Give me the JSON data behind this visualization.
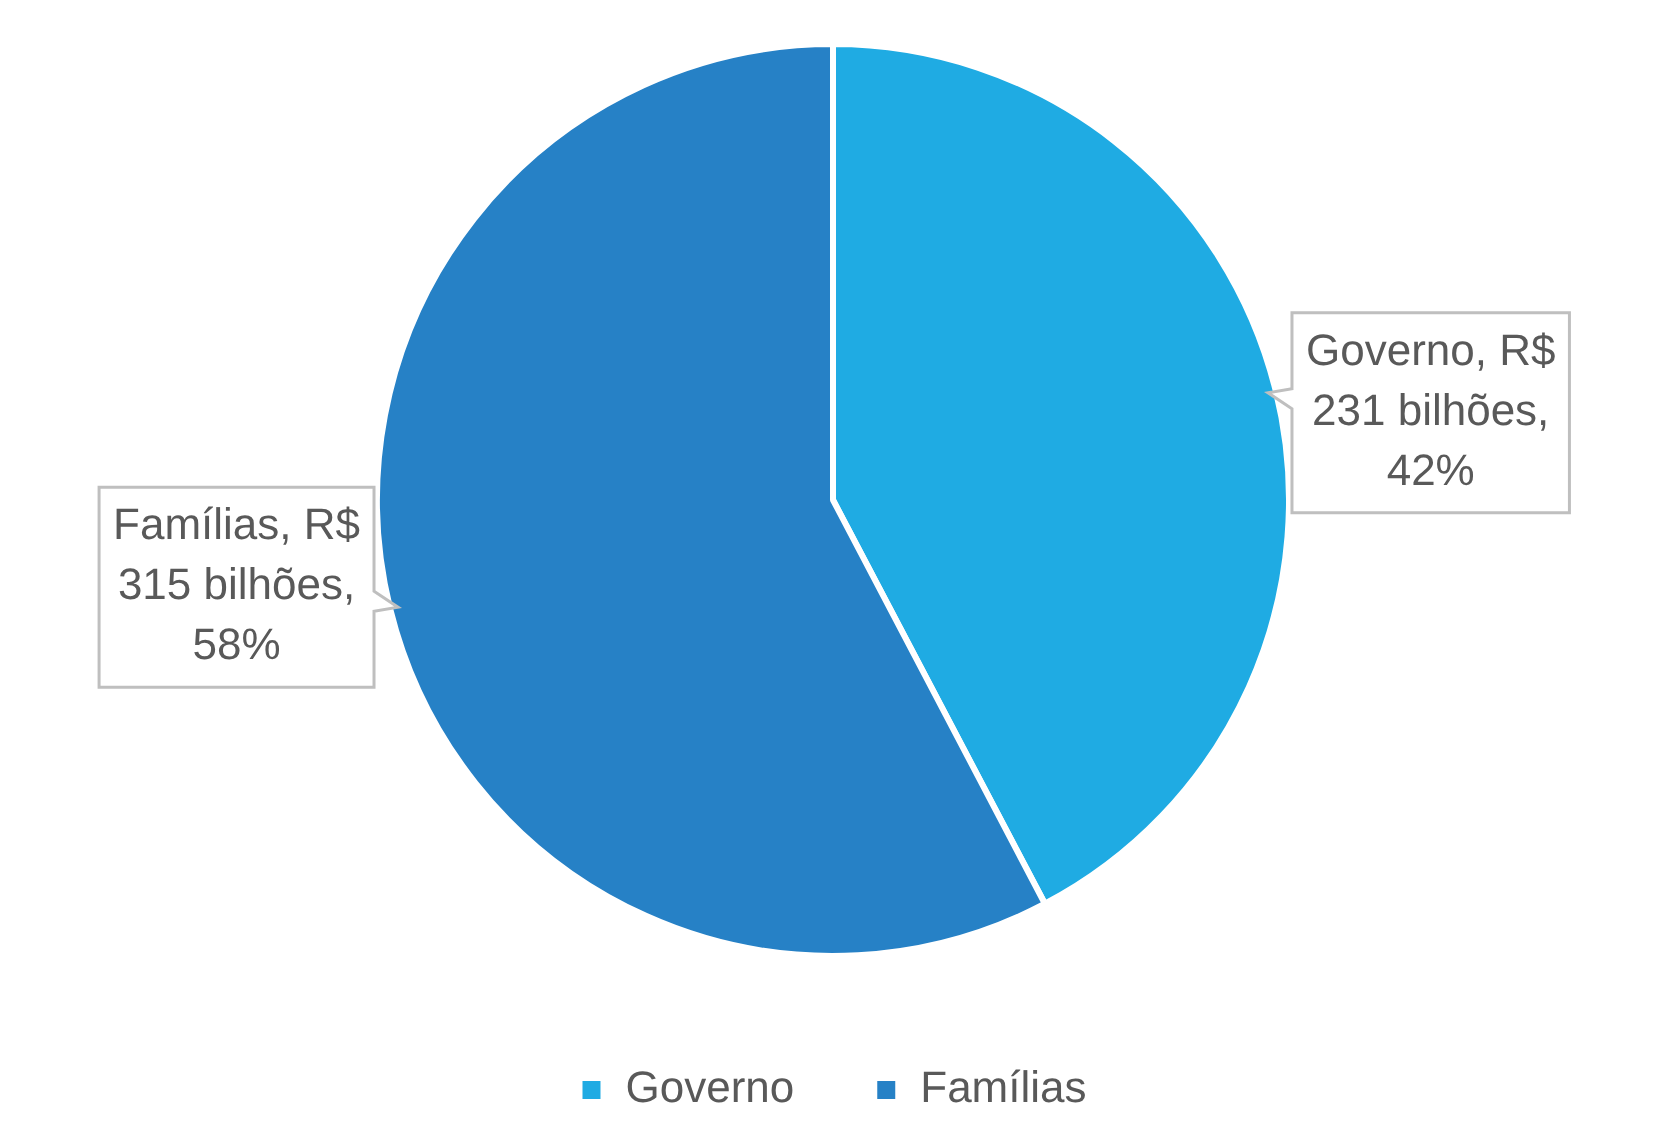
{
  "chart_data": {
    "type": "pie",
    "categories": [
      "Governo",
      "Famílias"
    ],
    "values": [
      231,
      315
    ],
    "colors": [
      "#1fabe3",
      "#2681c6"
    ],
    "value_labels": [
      "Governo, R$ 231 bilhões, 42%",
      "Famílias, R$ 315 bilhões, 58%"
    ],
    "legend": "bottom"
  }
}
